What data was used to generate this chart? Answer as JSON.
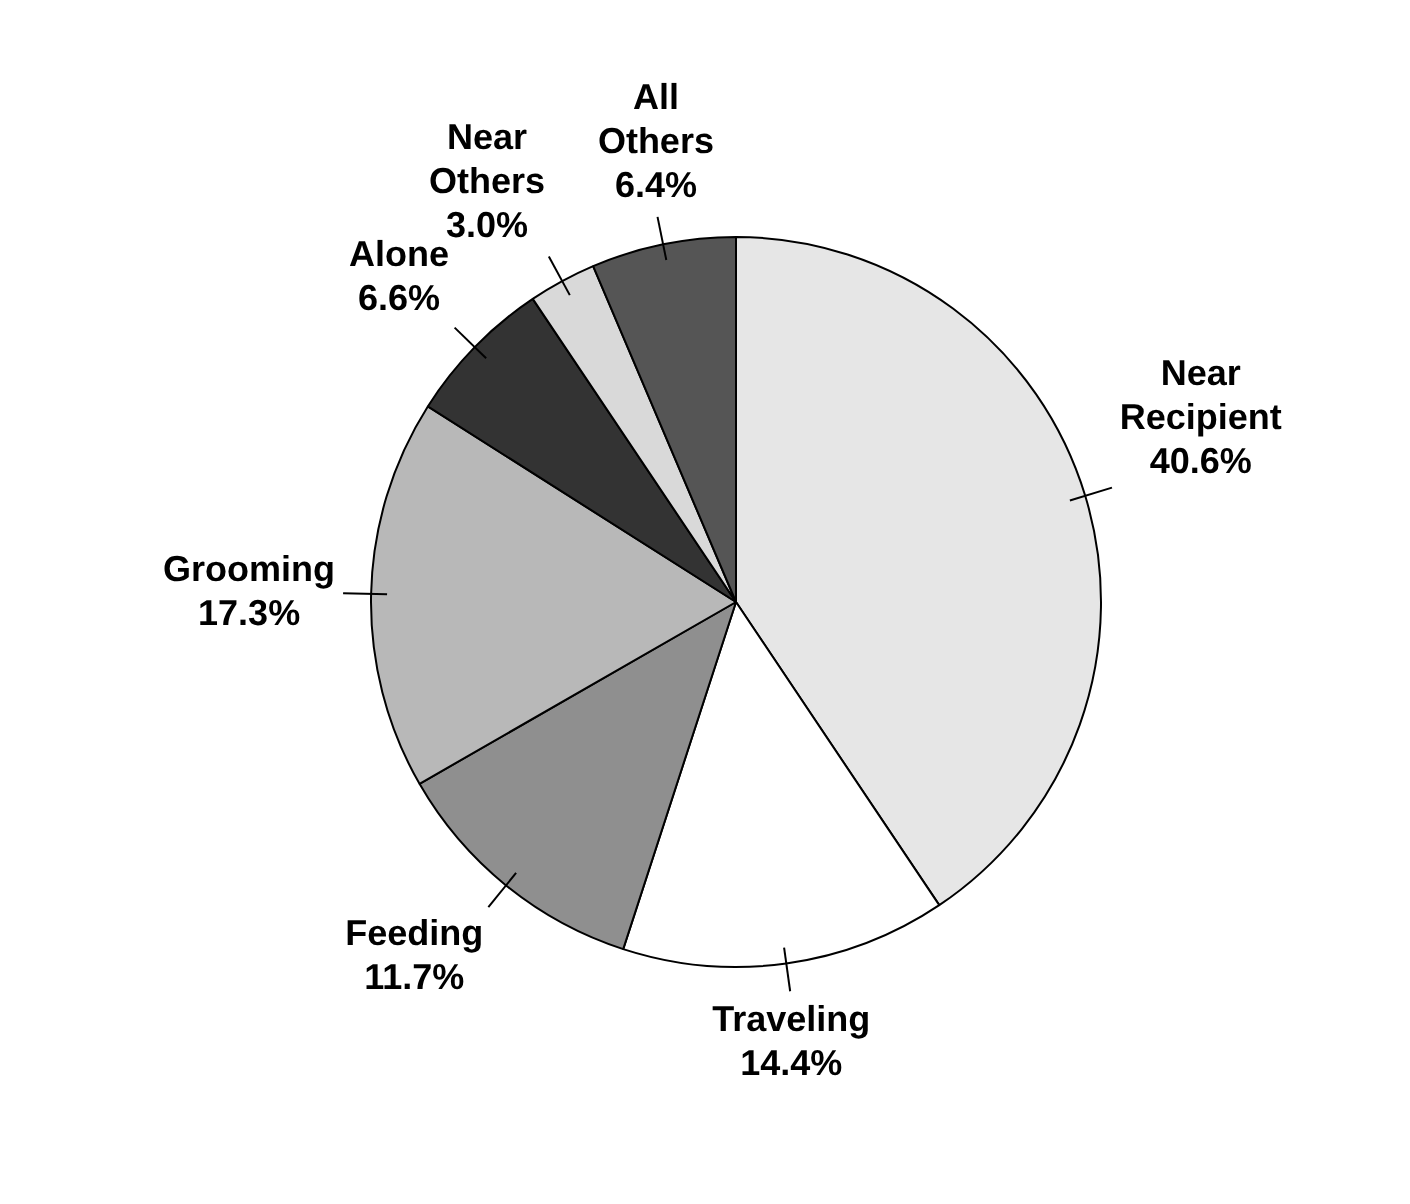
{
  "chart_data": {
    "type": "pie",
    "categories": [
      "Near Recipient",
      "Traveling",
      "Feeding",
      "Grooming",
      "Alone",
      "Near Others",
      "All Others"
    ],
    "values": [
      40.6,
      14.4,
      11.7,
      17.3,
      6.6,
      3.0,
      6.4
    ],
    "value_labels": [
      "40.6%",
      "14.4%",
      "11.7%",
      "17.3%",
      "6.6%",
      "3.0%",
      "6.4%"
    ],
    "colors": [
      "#e6e6e6",
      "#ffffff",
      "#8f8f8f",
      "#b8b8b8",
      "#333333",
      "#d9d9d9",
      "#555555"
    ],
    "legend": false
  }
}
